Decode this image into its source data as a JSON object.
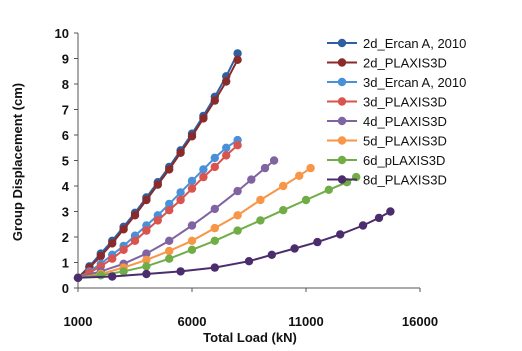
{
  "chart_data": {
    "type": "line",
    "title": "",
    "xlabel": "Total Load (kN)",
    "ylabel": "Group Displacement (cm)",
    "xlim": [
      1000,
      16000
    ],
    "ylim": [
      0,
      10
    ],
    "x_ticks": [
      1000,
      6000,
      11000,
      16000
    ],
    "y_ticks": [
      0,
      1,
      2,
      3,
      4,
      5,
      6,
      7,
      8,
      9,
      10
    ],
    "grid": false,
    "legend_position": "top-right",
    "series": [
      {
        "name": "2d_Ercan A, 2010",
        "color": "#2f5f9e",
        "x": [
          1000,
          1500,
          2000,
          2500,
          3000,
          3500,
          4000,
          4500,
          5000,
          5500,
          6000,
          6500,
          7000,
          7500,
          8000
        ],
        "y": [
          0.4,
          0.85,
          1.35,
          1.85,
          2.4,
          2.95,
          3.55,
          4.15,
          4.75,
          5.4,
          6.05,
          6.75,
          7.5,
          8.3,
          9.2
        ]
      },
      {
        "name": "2d_PLAXIS3D",
        "color": "#8b2a2a",
        "x": [
          1000,
          1500,
          2000,
          2500,
          3000,
          3500,
          4000,
          4500,
          5000,
          5500,
          6000,
          6500,
          7000,
          7500,
          8000
        ],
        "y": [
          0.4,
          0.8,
          1.25,
          1.75,
          2.3,
          2.85,
          3.45,
          4.05,
          4.65,
          5.3,
          5.95,
          6.65,
          7.35,
          8.1,
          8.95
        ]
      },
      {
        "name": "3d_Ercan A, 2010",
        "color": "#4a90d9",
        "x": [
          1000,
          1500,
          2000,
          2500,
          3000,
          3500,
          4000,
          4500,
          5000,
          5500,
          6000,
          6500,
          7000,
          7500,
          8000
        ],
        "y": [
          0.4,
          0.65,
          0.95,
          1.3,
          1.65,
          2.05,
          2.45,
          2.85,
          3.3,
          3.75,
          4.2,
          4.65,
          5.1,
          5.5,
          5.8
        ]
      },
      {
        "name": "3d_PLAXIS3D",
        "color": "#d9534f",
        "x": [
          1000,
          1500,
          2000,
          2500,
          3000,
          3500,
          4000,
          4500,
          5000,
          5500,
          6000,
          6500,
          7000,
          7500,
          8000
        ],
        "y": [
          0.4,
          0.6,
          0.85,
          1.15,
          1.5,
          1.85,
          2.25,
          2.65,
          3.05,
          3.45,
          3.9,
          4.35,
          4.75,
          5.2,
          5.6
        ]
      },
      {
        "name": "4d_PLAXIS3D",
        "color": "#8064a2",
        "x": [
          1000,
          2000,
          3000,
          4000,
          5000,
          6000,
          7000,
          8000,
          8600,
          9200,
          9600
        ],
        "y": [
          0.4,
          0.65,
          0.95,
          1.35,
          1.85,
          2.45,
          3.1,
          3.8,
          4.25,
          4.7,
          5.0
        ]
      },
      {
        "name": "5d_PLAXIS3D",
        "color": "#f79646",
        "x": [
          1000,
          2000,
          3000,
          4000,
          5000,
          6000,
          7000,
          8000,
          9000,
          10000,
          10700,
          11200
        ],
        "y": [
          0.4,
          0.55,
          0.8,
          1.1,
          1.45,
          1.85,
          2.35,
          2.85,
          3.45,
          4.0,
          4.4,
          4.7
        ]
      },
      {
        "name": "6d_pLAXIS3D",
        "color": "#70ad47",
        "x": [
          1000,
          2000,
          3000,
          4000,
          5000,
          6000,
          7000,
          8000,
          9000,
          10000,
          11000,
          12000,
          12800,
          13200
        ],
        "y": [
          0.4,
          0.5,
          0.65,
          0.85,
          1.15,
          1.5,
          1.85,
          2.25,
          2.65,
          3.05,
          3.45,
          3.85,
          4.15,
          4.35
        ]
      },
      {
        "name": "8d_PLAXIS3D",
        "color": "#4b2d6e",
        "x": [
          1000,
          2500,
          4000,
          5500,
          7000,
          8500,
          9500,
          10500,
          11500,
          12500,
          13500,
          14200,
          14700
        ],
        "y": [
          0.4,
          0.45,
          0.55,
          0.65,
          0.8,
          1.05,
          1.3,
          1.55,
          1.8,
          2.1,
          2.45,
          2.75,
          3.0
        ]
      }
    ]
  }
}
